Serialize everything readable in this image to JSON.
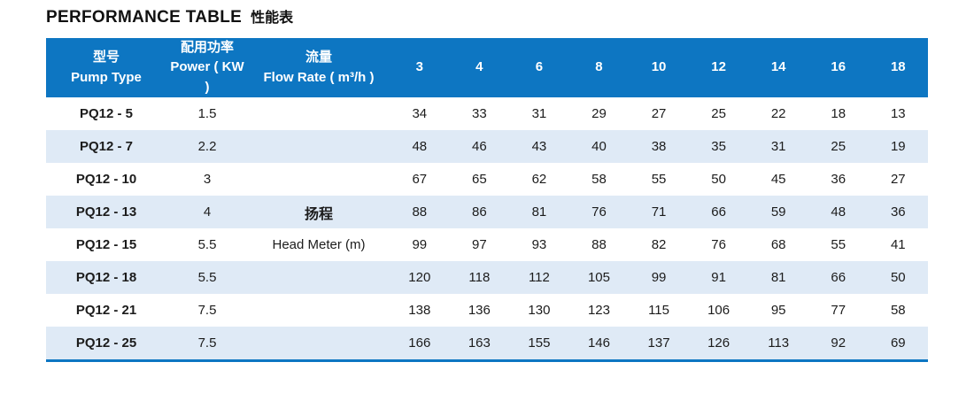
{
  "page": {
    "title_en": "PERFORMANCE TABLE",
    "title_zh": "性能表"
  },
  "table": {
    "colors": {
      "header_bg": "#0d76c2",
      "row_alt_bg": "#dfeaf6",
      "bottom_border": "#0d76c2",
      "header_text": "#ffffff",
      "body_text": "#1c1c1c"
    },
    "headers": {
      "pump_type_zh": "型号",
      "pump_type_en": "Pump Type",
      "power_zh": "配用功率",
      "power_en": "Power ( KW )",
      "flow_zh": "流量",
      "flow_en": "Flow Rate ( m³/h )",
      "flow_values": [
        "3",
        "4",
        "6",
        "8",
        "10",
        "12",
        "14",
        "16",
        "18"
      ]
    },
    "rows": [
      {
        "pump_type": "PQ12 - 5",
        "power": "1.5",
        "flow_label": "",
        "flow_bold": false,
        "values": [
          34,
          33,
          31,
          29,
          27,
          25,
          22,
          18,
          13
        ]
      },
      {
        "pump_type": "PQ12 - 7",
        "power": "2.2",
        "flow_label": "",
        "flow_bold": false,
        "values": [
          48,
          46,
          43,
          40,
          38,
          35,
          31,
          25,
          19
        ]
      },
      {
        "pump_type": "PQ12 - 10",
        "power": "3",
        "flow_label": "",
        "flow_bold": false,
        "values": [
          67,
          65,
          62,
          58,
          55,
          50,
          45,
          36,
          27
        ]
      },
      {
        "pump_type": "PQ12 - 13",
        "power": "4",
        "flow_label": "扬程",
        "flow_bold": true,
        "values": [
          88,
          86,
          81,
          76,
          71,
          66,
          59,
          48,
          36
        ]
      },
      {
        "pump_type": "PQ12 - 15",
        "power": "5.5",
        "flow_label": "Head Meter (m)",
        "flow_bold": false,
        "values": [
          99,
          97,
          93,
          88,
          82,
          76,
          68,
          55,
          41
        ]
      },
      {
        "pump_type": "PQ12 - 18",
        "power": "5.5",
        "flow_label": "",
        "flow_bold": false,
        "values": [
          120,
          118,
          112,
          105,
          99,
          91,
          81,
          66,
          50
        ]
      },
      {
        "pump_type": "PQ12 - 21",
        "power": "7.5",
        "flow_label": "",
        "flow_bold": false,
        "values": [
          138,
          136,
          130,
          123,
          115,
          106,
          95,
          77,
          58
        ]
      },
      {
        "pump_type": "PQ12 - 25",
        "power": "7.5",
        "flow_label": "",
        "flow_bold": false,
        "values": [
          166,
          163,
          155,
          146,
          137,
          126,
          113,
          92,
          69
        ]
      }
    ]
  },
  "chart_data": {
    "type": "table",
    "title": "PERFORMANCE TABLE 性能表",
    "column_headers": [
      "型号 Pump Type",
      "配用功率 Power ( KW )",
      "流量 Flow Rate ( m³/h )",
      "3",
      "4",
      "6",
      "8",
      "10",
      "12",
      "14",
      "16",
      "18"
    ],
    "value_unit_label": "扬程 Head Meter (m)",
    "rows": [
      {
        "pump_type": "PQ12 - 5",
        "power_kw": 1.5,
        "head_m_by_flow": [
          34,
          33,
          31,
          29,
          27,
          25,
          22,
          18,
          13
        ]
      },
      {
        "pump_type": "PQ12 - 7",
        "power_kw": 2.2,
        "head_m_by_flow": [
          48,
          46,
          43,
          40,
          38,
          35,
          31,
          25,
          19
        ]
      },
      {
        "pump_type": "PQ12 - 10",
        "power_kw": 3,
        "head_m_by_flow": [
          67,
          65,
          62,
          58,
          55,
          50,
          45,
          36,
          27
        ]
      },
      {
        "pump_type": "PQ12 - 13",
        "power_kw": 4,
        "head_m_by_flow": [
          88,
          86,
          81,
          76,
          71,
          66,
          59,
          48,
          36
        ]
      },
      {
        "pump_type": "PQ12 - 15",
        "power_kw": 5.5,
        "head_m_by_flow": [
          99,
          97,
          93,
          88,
          82,
          76,
          68,
          55,
          41
        ]
      },
      {
        "pump_type": "PQ12 - 18",
        "power_kw": 5.5,
        "head_m_by_flow": [
          120,
          118,
          112,
          105,
          99,
          91,
          81,
          66,
          50
        ]
      },
      {
        "pump_type": "PQ12 - 21",
        "power_kw": 7.5,
        "head_m_by_flow": [
          138,
          136,
          130,
          123,
          115,
          106,
          95,
          77,
          58
        ]
      },
      {
        "pump_type": "PQ12 - 25",
        "power_kw": 7.5,
        "head_m_by_flow": [
          166,
          163,
          155,
          146,
          137,
          126,
          113,
          92,
          69
        ]
      }
    ],
    "flow_rate_m3h": [
      3,
      4,
      6,
      8,
      10,
      12,
      14,
      16,
      18
    ]
  }
}
